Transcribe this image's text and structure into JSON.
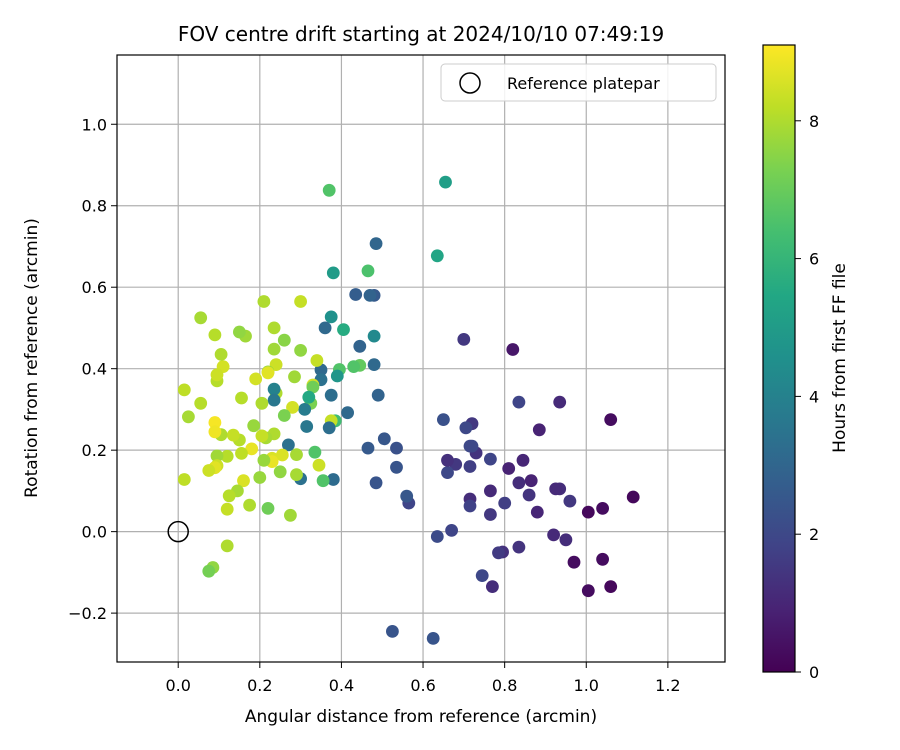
{
  "chart_data": {
    "type": "scatter",
    "title": "FOV centre drift starting at 2024/10/10 07:49:19",
    "xlabel": "Angular distance from reference (arcmin)",
    "ylabel": "Rotation from reference (arcmin)",
    "xlim": [
      -0.15,
      1.34
    ],
    "ylim": [
      -0.32,
      1.17
    ],
    "xticks": [
      "0.0",
      "0.2",
      "0.4",
      "0.6",
      "0.8",
      "1.0",
      "1.2"
    ],
    "yticks": [
      "−0.2",
      "0.0",
      "0.2",
      "0.4",
      "0.6",
      "0.8",
      "1.0"
    ],
    "xtick_values": [
      0.0,
      0.2,
      0.4,
      0.6,
      0.8,
      1.0,
      1.2
    ],
    "ytick_values": [
      -0.2,
      0.0,
      0.2,
      0.4,
      0.6,
      0.8,
      1.0
    ],
    "grid": true,
    "colormap": "viridis",
    "colorbar": {
      "label": "Hours from first FF file",
      "range": [
        0,
        9.1
      ],
      "ticks": [
        "0",
        "2",
        "4",
        "6",
        "8"
      ],
      "tick_values": [
        0,
        2,
        4,
        6,
        8
      ]
    },
    "legend": {
      "placement": "top-right",
      "entries": [
        {
          "label": "Reference platepar",
          "marker": "open-circle"
        }
      ]
    },
    "reference_point": {
      "x": 0.0,
      "y": 0.0
    },
    "points": [
      [
        1.115,
        0.085,
        0.2
      ],
      [
        1.06,
        -0.135,
        0.2
      ],
      [
        1.06,
        0.275,
        0.3
      ],
      [
        1.04,
        0.057,
        0.3
      ],
      [
        1.04,
        -0.068,
        0.3
      ],
      [
        1.005,
        0.048,
        0.2
      ],
      [
        1.005,
        -0.145,
        0.3
      ],
      [
        0.97,
        -0.075,
        0.3
      ],
      [
        0.96,
        0.075,
        1.5
      ],
      [
        0.95,
        -0.02,
        1.2
      ],
      [
        0.935,
        0.318,
        1.1
      ],
      [
        0.935,
        0.105,
        1.2
      ],
      [
        0.925,
        0.105,
        1.1
      ],
      [
        0.92,
        -0.008,
        1.1
      ],
      [
        0.885,
        0.25,
        0.9
      ],
      [
        0.88,
        0.048,
        1.0
      ],
      [
        0.865,
        0.125,
        0.9
      ],
      [
        0.86,
        0.09,
        1.4
      ],
      [
        0.845,
        0.175,
        1.0
      ],
      [
        0.835,
        0.318,
        1.9
      ],
      [
        0.835,
        0.12,
        1.2
      ],
      [
        0.835,
        -0.038,
        1.4
      ],
      [
        0.82,
        0.447,
        0.6
      ],
      [
        0.81,
        0.155,
        0.9
      ],
      [
        0.8,
        0.07,
        1.7
      ],
      [
        0.795,
        -0.05,
        1.3
      ],
      [
        0.785,
        -0.052,
        1.6
      ],
      [
        0.77,
        -0.135,
        1.2
      ],
      [
        0.765,
        0.1,
        1.1
      ],
      [
        0.765,
        0.042,
        1.5
      ],
      [
        0.765,
        0.178,
        1.9
      ],
      [
        0.745,
        -0.108,
        2.0
      ],
      [
        0.73,
        0.193,
        1.4
      ],
      [
        0.72,
        0.265,
        1.5
      ],
      [
        0.72,
        0.21,
        2.0
      ],
      [
        0.715,
        0.21,
        2.0
      ],
      [
        0.715,
        0.08,
        1.2
      ],
      [
        0.715,
        0.063,
        1.8
      ],
      [
        0.715,
        0.16,
        1.7
      ],
      [
        0.705,
        0.255,
        2.0
      ],
      [
        0.7,
        0.472,
        1.5
      ],
      [
        0.68,
        0.165,
        1.5
      ],
      [
        0.67,
        0.003,
        1.9
      ],
      [
        0.66,
        0.145,
        2.0
      ],
      [
        0.66,
        0.175,
        1.3
      ],
      [
        0.65,
        0.275,
        2.3
      ],
      [
        0.655,
        0.858,
        5.1
      ],
      [
        0.635,
        0.677,
        5.4
      ],
      [
        0.635,
        -0.012,
        2.1
      ],
      [
        0.625,
        -0.262,
        2.4
      ],
      [
        0.565,
        0.07,
        1.9
      ],
      [
        0.56,
        0.087,
        2.5
      ],
      [
        0.535,
        0.205,
        2.3
      ],
      [
        0.535,
        0.158,
        2.4
      ],
      [
        0.525,
        -0.245,
        2.4
      ],
      [
        0.505,
        0.228,
        2.5
      ],
      [
        0.49,
        0.335,
        2.9
      ],
      [
        0.485,
        0.12,
        2.4
      ],
      [
        0.48,
        0.41,
        3.1
      ],
      [
        0.48,
        0.48,
        4.3
      ],
      [
        0.485,
        0.707,
        3.0
      ],
      [
        0.48,
        0.58,
        2.6
      ],
      [
        0.47,
        0.58,
        2.9
      ],
      [
        0.465,
        0.205,
        2.6
      ],
      [
        0.465,
        0.64,
        6.5
      ],
      [
        0.445,
        0.408,
        6.9
      ],
      [
        0.445,
        0.455,
        2.9
      ],
      [
        0.435,
        0.582,
        2.7
      ],
      [
        0.43,
        0.405,
        6.6
      ],
      [
        0.415,
        0.292,
        3.1
      ],
      [
        0.405,
        0.496,
        5.6
      ],
      [
        0.395,
        0.398,
        6.6
      ],
      [
        0.39,
        0.382,
        4.8
      ],
      [
        0.385,
        0.272,
        6.3
      ],
      [
        0.38,
        0.128,
        3.2
      ],
      [
        0.38,
        0.635,
        5.0
      ],
      [
        0.375,
        0.527,
        4.6
      ],
      [
        0.375,
        0.335,
        3.3
      ],
      [
        0.375,
        0.272,
        8.3
      ],
      [
        0.37,
        0.255,
        3.3
      ],
      [
        0.37,
        0.838,
        6.6
      ],
      [
        0.36,
        0.5,
        3.1
      ],
      [
        0.355,
        0.125,
        6.6
      ],
      [
        0.35,
        0.397,
        3.1
      ],
      [
        0.35,
        0.373,
        3.4
      ],
      [
        0.345,
        0.163,
        8.4
      ],
      [
        0.34,
        0.42,
        8.3
      ],
      [
        0.335,
        0.195,
        6.6
      ],
      [
        0.33,
        0.36,
        8.5
      ],
      [
        0.33,
        0.355,
        7.1
      ],
      [
        0.325,
        0.315,
        7.3
      ],
      [
        0.32,
        0.33,
        5.5
      ],
      [
        0.315,
        0.258,
        3.6
      ],
      [
        0.31,
        0.3,
        3.8
      ],
      [
        0.3,
        0.565,
        8.3
      ],
      [
        0.3,
        0.445,
        7.6
      ],
      [
        0.3,
        0.13,
        3.4
      ],
      [
        0.29,
        0.14,
        7.9
      ],
      [
        0.29,
        0.189,
        7.9
      ],
      [
        0.285,
        0.38,
        7.8
      ],
      [
        0.28,
        0.305,
        8.5
      ],
      [
        0.275,
        0.04,
        7.8
      ],
      [
        0.27,
        0.213,
        3.4
      ],
      [
        0.26,
        0.47,
        7.5
      ],
      [
        0.26,
        0.285,
        7.3
      ],
      [
        0.255,
        0.188,
        8.6
      ],
      [
        0.25,
        0.147,
        7.6
      ],
      [
        0.24,
        0.34,
        8.0
      ],
      [
        0.24,
        0.41,
        8.4
      ],
      [
        0.235,
        0.5,
        8.0
      ],
      [
        0.235,
        0.448,
        7.8
      ],
      [
        0.235,
        0.35,
        4.0
      ],
      [
        0.235,
        0.323,
        3.6
      ],
      [
        0.235,
        0.24,
        8.0
      ],
      [
        0.23,
        0.18,
        8.6
      ],
      [
        0.23,
        0.172,
        8.8
      ],
      [
        0.22,
        0.392,
        7.7
      ],
      [
        0.22,
        0.39,
        8.7
      ],
      [
        0.22,
        0.057,
        7.1
      ],
      [
        0.215,
        0.23,
        7.9
      ],
      [
        0.21,
        0.565,
        8.0
      ],
      [
        0.21,
        0.175,
        7.7
      ],
      [
        0.205,
        0.315,
        8.0
      ],
      [
        0.205,
        0.235,
        8.3
      ],
      [
        0.2,
        0.133,
        7.7
      ],
      [
        0.19,
        0.375,
        8.5
      ],
      [
        0.185,
        0.26,
        7.7
      ],
      [
        0.18,
        0.203,
        8.8
      ],
      [
        0.175,
        0.065,
        8.0
      ],
      [
        0.165,
        0.48,
        7.8
      ],
      [
        0.16,
        0.125,
        8.6
      ],
      [
        0.155,
        0.328,
        8.1
      ],
      [
        0.155,
        0.192,
        8.2
      ],
      [
        0.15,
        0.49,
        7.6
      ],
      [
        0.15,
        0.225,
        8.1
      ],
      [
        0.145,
        0.1,
        7.9
      ],
      [
        0.135,
        0.237,
        8.3
      ],
      [
        0.125,
        0.088,
        8.1
      ],
      [
        0.12,
        0.055,
        8.3
      ],
      [
        0.12,
        0.185,
        8.1
      ],
      [
        0.12,
        -0.035,
        8.0
      ],
      [
        0.11,
        0.405,
        8.5
      ],
      [
        0.105,
        0.238,
        8.0
      ],
      [
        0.105,
        0.435,
        8.0
      ],
      [
        0.095,
        0.186,
        7.8
      ],
      [
        0.095,
        0.162,
        8.4
      ],
      [
        0.095,
        0.37,
        8.1
      ],
      [
        0.095,
        0.385,
        8.4
      ],
      [
        0.09,
        0.268,
        9.0
      ],
      [
        0.09,
        0.245,
        8.9
      ],
      [
        0.09,
        0.157,
        8.7
      ],
      [
        0.09,
        0.483,
        8.1
      ],
      [
        0.085,
        -0.088,
        7.6
      ],
      [
        0.075,
        -0.097,
        7.2
      ],
      [
        0.075,
        0.15,
        8.4
      ],
      [
        0.055,
        0.525,
        7.9
      ],
      [
        0.055,
        0.315,
        8.1
      ],
      [
        0.025,
        0.282,
        7.9
      ],
      [
        0.015,
        0.128,
        8.2
      ],
      [
        0.015,
        0.348,
        8.2
      ]
    ]
  }
}
